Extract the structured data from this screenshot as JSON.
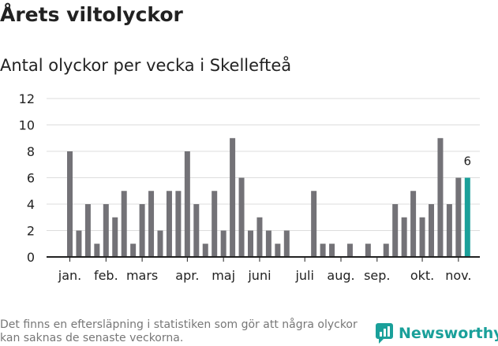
{
  "header": {
    "title": "Årets viltolyckor",
    "subtitle": "Antal olyckor per vecka i Skellefteå"
  },
  "footer": {
    "note": "Det finns en eftersläpning i statistiken som gör att några olyckor kan saknas de senaste veckorna.",
    "brand": "Newsworthy"
  },
  "colors": {
    "bar": "#737277",
    "highlight": "#1aa09a",
    "grid": "#dddddd",
    "axis": "#222222"
  },
  "chart_data": {
    "type": "bar",
    "title": "Antal olyckor per vecka i Skellefteå",
    "xlabel": "",
    "ylabel": "",
    "ylim": [
      0,
      12
    ],
    "yticks": [
      0,
      2,
      4,
      6,
      8,
      10,
      12
    ],
    "weeks": [
      1,
      2,
      3,
      4,
      5,
      6,
      7,
      8,
      9,
      10,
      11,
      12,
      13,
      14,
      15,
      16,
      17,
      18,
      19,
      20,
      21,
      22,
      23,
      24,
      25,
      26,
      27,
      28,
      29,
      30,
      31,
      32,
      33,
      34,
      35,
      36,
      37,
      38,
      39,
      40,
      41,
      42,
      43,
      44,
      45
    ],
    "values": [
      8,
      2,
      4,
      1,
      4,
      3,
      5,
      1,
      4,
      5,
      2,
      5,
      5,
      8,
      4,
      1,
      5,
      2,
      9,
      6,
      2,
      3,
      2,
      1,
      2,
      0,
      0,
      5,
      1,
      1,
      0,
      1,
      0,
      1,
      0,
      1,
      4,
      3,
      5,
      3,
      4,
      9,
      4,
      6,
      6
    ],
    "highlight_index": 44,
    "highlight_label": "6",
    "month_labels": [
      {
        "label": "jan.",
        "week": 1
      },
      {
        "label": "feb.",
        "week": 5
      },
      {
        "label": "mars",
        "week": 9
      },
      {
        "label": "apr.",
        "week": 14
      },
      {
        "label": "maj",
        "week": 18
      },
      {
        "label": "juni",
        "week": 22
      },
      {
        "label": "juli",
        "week": 27
      },
      {
        "label": "aug.",
        "week": 31
      },
      {
        "label": "sep.",
        "week": 35
      },
      {
        "label": "okt.",
        "week": 40
      },
      {
        "label": "nov.",
        "week": 44
      }
    ]
  }
}
